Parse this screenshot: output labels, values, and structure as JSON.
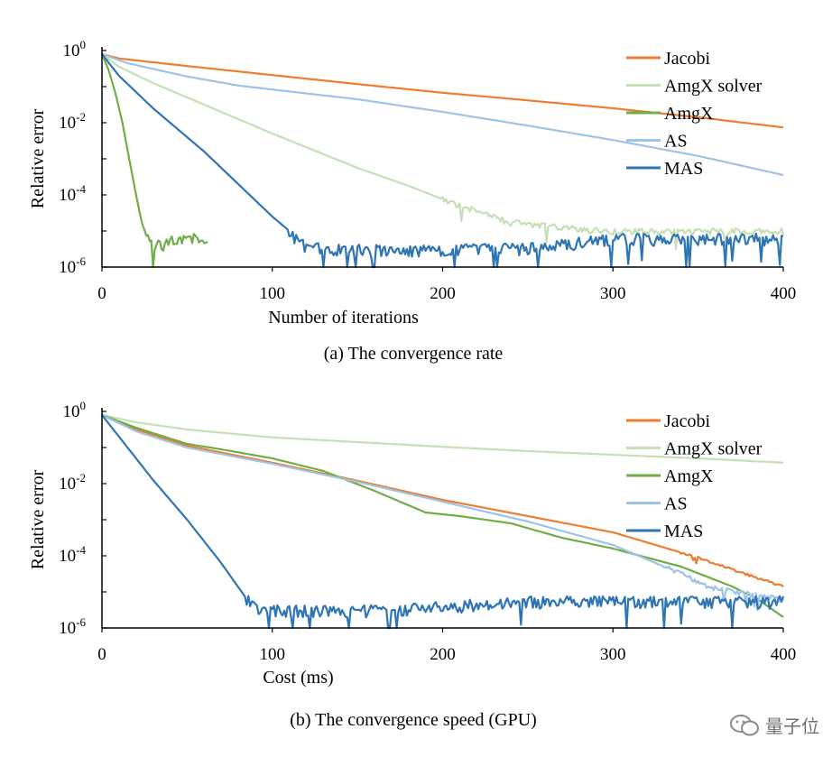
{
  "chart_data": [
    {
      "type": "line",
      "caption": "(a)  The convergence rate",
      "xlabel": "Number of iterations",
      "ylabel": "Relative error",
      "xlim": [
        0,
        400
      ],
      "x_ticks": [
        0,
        100,
        200,
        300,
        400
      ],
      "y_scale": "log10",
      "ylim_exp": [
        -6,
        0
      ],
      "y_ticks": [
        {
          "base": "10",
          "exp": "0"
        },
        {
          "base": "10",
          "exp": "-2"
        },
        {
          "base": "10",
          "exp": "-4"
        },
        {
          "base": "10",
          "exp": "-6"
        }
      ],
      "legend": [
        "Jacobi",
        "AmgX solver",
        "AmgX",
        "AS",
        "MAS"
      ],
      "series": [
        {
          "name": "Jacobi",
          "color": "#ED7D31",
          "noise": 0,
          "points": [
            [
              0,
              -0.1
            ],
            [
              10,
              -0.22
            ],
            [
              50,
              -0.43
            ],
            [
              100,
              -0.68
            ],
            [
              150,
              -0.93
            ],
            [
              200,
              -1.17
            ],
            [
              250,
              -1.38
            ],
            [
              300,
              -1.6
            ],
            [
              350,
              -1.85
            ],
            [
              400,
              -2.13
            ]
          ]
        },
        {
          "name": "AmgX solver",
          "color": "#C5E0B4",
          "noise": 0.12,
          "noise_from": 200,
          "points": [
            [
              0,
              -0.1
            ],
            [
              10,
              -0.45
            ],
            [
              30,
              -0.9
            ],
            [
              60,
              -1.5
            ],
            [
              100,
              -2.3
            ],
            [
              150,
              -3.25
            ],
            [
              180,
              -3.75
            ],
            [
              210,
              -4.3
            ],
            [
              240,
              -4.75
            ],
            [
              270,
              -4.9
            ],
            [
              300,
              -5.0
            ],
            [
              350,
              -5.0
            ],
            [
              400,
              -5.0
            ]
          ]
        },
        {
          "name": "AmgX",
          "color": "#70AD47",
          "noise": 0.22,
          "noise_from": 24,
          "points": [
            [
              0,
              -0.1
            ],
            [
              4,
              -0.55
            ],
            [
              8,
              -1.2
            ],
            [
              12,
              -2.0
            ],
            [
              16,
              -3.0
            ],
            [
              20,
              -4.0
            ],
            [
              24,
              -4.9
            ],
            [
              28,
              -5.3
            ],
            [
              35,
              -5.4
            ],
            [
              45,
              -5.2
            ],
            [
              55,
              -5.2
            ],
            [
              62,
              -5.2
            ]
          ]
        },
        {
          "name": "AS",
          "color": "#9DC3E6",
          "noise": 0,
          "points": [
            [
              0,
              -0.1
            ],
            [
              15,
              -0.35
            ],
            [
              50,
              -0.72
            ],
            [
              80,
              -0.97
            ],
            [
              100,
              -1.08
            ],
            [
              150,
              -1.35
            ],
            [
              200,
              -1.7
            ],
            [
              250,
              -2.08
            ],
            [
              300,
              -2.48
            ],
            [
              350,
              -2.92
            ],
            [
              400,
              -3.45
            ]
          ]
        },
        {
          "name": "MAS",
          "color": "#2E75B6",
          "noise": 0.22,
          "noise_from": 110,
          "points": [
            [
              0,
              -0.1
            ],
            [
              10,
              -0.7
            ],
            [
              30,
              -1.6
            ],
            [
              60,
              -2.8
            ],
            [
              80,
              -3.7
            ],
            [
              100,
              -4.6
            ],
            [
              110,
              -5.0
            ],
            [
              120,
              -5.45
            ],
            [
              150,
              -5.5
            ],
            [
              200,
              -5.5
            ],
            [
              250,
              -5.45
            ],
            [
              280,
              -5.3
            ],
            [
              300,
              -5.2
            ],
            [
              350,
              -5.2
            ],
            [
              400,
              -5.2
            ]
          ]
        }
      ]
    },
    {
      "type": "line",
      "caption": "(b)  The convergence speed (GPU)",
      "xlabel": "Cost (ms)",
      "ylabel": "Relative error",
      "xlim": [
        0,
        400
      ],
      "x_ticks": [
        0,
        100,
        200,
        300,
        400
      ],
      "y_scale": "log10",
      "ylim_exp": [
        -6,
        0
      ],
      "y_ticks": [
        {
          "base": "10",
          "exp": "0"
        },
        {
          "base": "10",
          "exp": "-2"
        },
        {
          "base": "10",
          "exp": "-4"
        },
        {
          "base": "10",
          "exp": "-6"
        }
      ],
      "legend": [
        "Jacobi",
        "AmgX solver",
        "AmgX",
        "AS",
        "MAS"
      ],
      "series": [
        {
          "name": "Jacobi",
          "color": "#ED7D31",
          "noise": 0.04,
          "noise_from": 340,
          "points": [
            [
              0,
              -0.1
            ],
            [
              20,
              -0.5
            ],
            [
              50,
              -0.95
            ],
            [
              100,
              -1.42
            ],
            [
              150,
              -1.92
            ],
            [
              200,
              -2.45
            ],
            [
              250,
              -2.9
            ],
            [
              300,
              -3.35
            ],
            [
              350,
              -4.05
            ],
            [
              400,
              -4.85
            ]
          ]
        },
        {
          "name": "AmgX solver",
          "color": "#C5E0B4",
          "noise": 0,
          "points": [
            [
              0,
              -0.1
            ],
            [
              20,
              -0.3
            ],
            [
              50,
              -0.5
            ],
            [
              100,
              -0.72
            ],
            [
              150,
              -0.85
            ],
            [
              200,
              -0.98
            ],
            [
              250,
              -1.1
            ],
            [
              300,
              -1.2
            ],
            [
              350,
              -1.3
            ],
            [
              400,
              -1.42
            ]
          ]
        },
        {
          "name": "AmgX",
          "color": "#70AD47",
          "noise": 0,
          "points": [
            [
              0,
              -0.1
            ],
            [
              20,
              -0.45
            ],
            [
              50,
              -0.9
            ],
            [
              70,
              -1.05
            ],
            [
              100,
              -1.3
            ],
            [
              130,
              -1.65
            ],
            [
              160,
              -2.2
            ],
            [
              190,
              -2.8
            ],
            [
              210,
              -2.9
            ],
            [
              240,
              -3.1
            ],
            [
              270,
              -3.5
            ],
            [
              300,
              -3.8
            ],
            [
              340,
              -4.3
            ],
            [
              370,
              -4.85
            ],
            [
              385,
              -5.2
            ],
            [
              400,
              -5.7
            ]
          ]
        },
        {
          "name": "AS",
          "color": "#9DC3E6",
          "noise": 0.1,
          "noise_from": 330,
          "points": [
            [
              0,
              -0.1
            ],
            [
              20,
              -0.55
            ],
            [
              50,
              -1.0
            ],
            [
              100,
              -1.45
            ],
            [
              150,
              -1.95
            ],
            [
              200,
              -2.5
            ],
            [
              250,
              -3.05
            ],
            [
              300,
              -3.7
            ],
            [
              330,
              -4.3
            ],
            [
              360,
              -4.9
            ],
            [
              400,
              -5.2
            ]
          ]
        },
        {
          "name": "MAS",
          "color": "#2E75B6",
          "noise": 0.22,
          "noise_from": 85,
          "points": [
            [
              0,
              -0.1
            ],
            [
              10,
              -0.7
            ],
            [
              30,
              -1.9
            ],
            [
              50,
              -3.0
            ],
            [
              70,
              -4.2
            ],
            [
              85,
              -5.2
            ],
            [
              95,
              -5.5
            ],
            [
              150,
              -5.5
            ],
            [
              200,
              -5.4
            ],
            [
              250,
              -5.25
            ],
            [
              300,
              -5.25
            ],
            [
              350,
              -5.25
            ],
            [
              400,
              -5.25
            ]
          ]
        }
      ]
    }
  ],
  "watermark": {
    "text": "量子位"
  }
}
